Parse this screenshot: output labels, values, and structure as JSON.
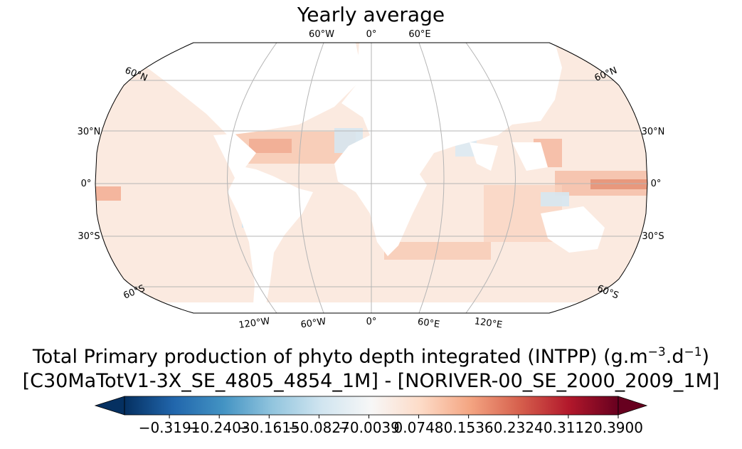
{
  "title": "Yearly average",
  "map": {
    "projection": "robinson",
    "top_labels": [
      "60°W",
      "0°",
      "60°E"
    ],
    "bottom_labels": [
      "120°W",
      "60°W",
      "0°",
      "60°E",
      "120°E"
    ],
    "left_labels": [
      "60°N",
      "30°N",
      "0°",
      "30°S",
      "60°S"
    ],
    "right_labels": [
      "60°N",
      "30°N",
      "0°",
      "30°S",
      "60°S"
    ]
  },
  "caption_line1": "Total Primary production of phyto depth integrated (INTPP) (g.m",
  "caption_sup1": "−3",
  "caption_mid": ".d",
  "caption_sup2": "−1",
  "caption_end": ")",
  "caption_line2": "[C30MaTotV1-3X_SE_4805_4854_1M] - [NORIVER-00_SE_2000_2009_1M]",
  "chart_data": {
    "type": "heatmap",
    "title": "Yearly average",
    "colormap": "RdBu_r",
    "colorbar": {
      "extend": "both",
      "vmin": -0.39,
      "vmax": 0.39,
      "ticks": [
        "−0.3191",
        "−0.2403",
        "−0.1615",
        "−0.0827",
        "−0.0039",
        "0.0748",
        "0.1536",
        "0.2324",
        "0.3112",
        "0.3900"
      ]
    },
    "colors": [
      "#053061",
      "#2166ac",
      "#4393c3",
      "#92c5de",
      "#d1e5f0",
      "#f7f7f7",
      "#fddbc7",
      "#f4a582",
      "#d6604d",
      "#b2182b",
      "#67001f"
    ]
  }
}
